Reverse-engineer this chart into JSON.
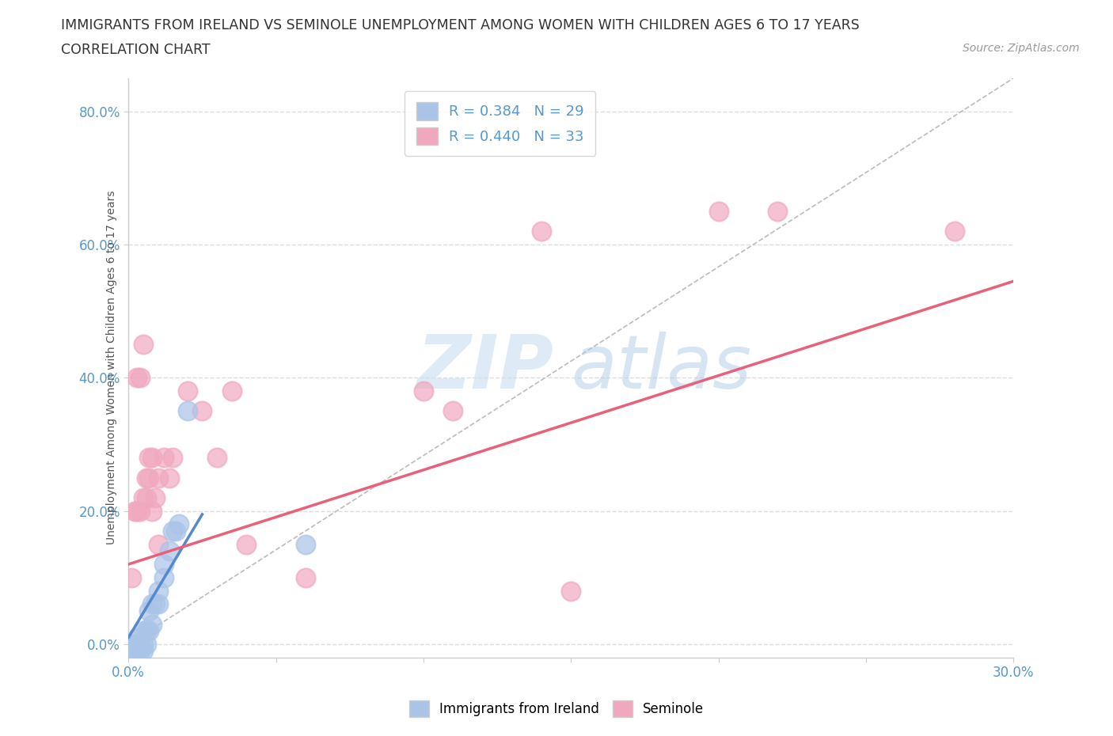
{
  "title_line1": "IMMIGRANTS FROM IRELAND VS SEMINOLE UNEMPLOYMENT AMONG WOMEN WITH CHILDREN AGES 6 TO 17 YEARS",
  "title_line2": "CORRELATION CHART",
  "source_text": "Source: ZipAtlas.com",
  "ylabel": "Unemployment Among Women with Children Ages 6 to 17 years",
  "xlim": [
    0.0,
    0.3
  ],
  "ylim": [
    -0.02,
    0.85
  ],
  "yticks": [
    0.0,
    0.2,
    0.4,
    0.6,
    0.8
  ],
  "xtick_positions": [
    0.0,
    0.05,
    0.1,
    0.15,
    0.2,
    0.25,
    0.3
  ],
  "xtick_labels_show": [
    "0.0%",
    "",
    "",
    "",
    "",
    "",
    "30.0%"
  ],
  "watermark_text": "ZIPatlas",
  "legend_entries": [
    {
      "label": "R = 0.384   N = 29",
      "color": "#aac4e8"
    },
    {
      "label": "R = 0.440   N = 33",
      "color": "#f0a8bf"
    }
  ],
  "ireland_scatter": [
    [
      0.001,
      -0.01
    ],
    [
      0.001,
      0.0
    ],
    [
      0.002,
      0.0
    ],
    [
      0.002,
      -0.01
    ],
    [
      0.003,
      -0.01
    ],
    [
      0.003,
      0.0
    ],
    [
      0.003,
      0.01
    ],
    [
      0.004,
      -0.01
    ],
    [
      0.004,
      0.0
    ],
    [
      0.005,
      -0.01
    ],
    [
      0.005,
      0.0
    ],
    [
      0.005,
      0.02
    ],
    [
      0.006,
      0.0
    ],
    [
      0.006,
      0.02
    ],
    [
      0.007,
      0.02
    ],
    [
      0.007,
      0.05
    ],
    [
      0.008,
      0.03
    ],
    [
      0.008,
      0.06
    ],
    [
      0.009,
      0.06
    ],
    [
      0.01,
      0.06
    ],
    [
      0.01,
      0.08
    ],
    [
      0.012,
      0.1
    ],
    [
      0.012,
      0.12
    ],
    [
      0.014,
      0.14
    ],
    [
      0.015,
      0.17
    ],
    [
      0.016,
      0.17
    ],
    [
      0.017,
      0.18
    ],
    [
      0.02,
      0.35
    ],
    [
      0.06,
      0.15
    ]
  ],
  "seminole_scatter": [
    [
      0.001,
      0.1
    ],
    [
      0.002,
      0.2
    ],
    [
      0.003,
      0.2
    ],
    [
      0.003,
      0.4
    ],
    [
      0.004,
      0.2
    ],
    [
      0.004,
      0.4
    ],
    [
      0.005,
      0.45
    ],
    [
      0.005,
      0.22
    ],
    [
      0.006,
      0.22
    ],
    [
      0.006,
      0.25
    ],
    [
      0.007,
      0.25
    ],
    [
      0.007,
      0.28
    ],
    [
      0.008,
      0.28
    ],
    [
      0.008,
      0.2
    ],
    [
      0.009,
      0.22
    ],
    [
      0.01,
      0.15
    ],
    [
      0.01,
      0.25
    ],
    [
      0.012,
      0.28
    ],
    [
      0.014,
      0.25
    ],
    [
      0.015,
      0.28
    ],
    [
      0.02,
      0.38
    ],
    [
      0.025,
      0.35
    ],
    [
      0.03,
      0.28
    ],
    [
      0.035,
      0.38
    ],
    [
      0.04,
      0.15
    ],
    [
      0.06,
      0.1
    ],
    [
      0.1,
      0.38
    ],
    [
      0.11,
      0.35
    ],
    [
      0.14,
      0.62
    ],
    [
      0.15,
      0.08
    ],
    [
      0.2,
      0.65
    ],
    [
      0.22,
      0.65
    ],
    [
      0.28,
      0.62
    ]
  ],
  "ireland_line": {
    "x0": 0.0,
    "y0": 0.01,
    "x1": 0.025,
    "y1": 0.195,
    "color": "#5588cc"
  },
  "seminole_line": {
    "x0": 0.0,
    "y0": 0.12,
    "x1": 0.3,
    "y1": 0.545,
    "color": "#e8607a"
  },
  "ref_line": {
    "x0": 0.0,
    "y0": 0.0,
    "x1": 0.3,
    "y1": 0.85,
    "color": "#bbbbbb"
  },
  "ireland_color": "#aac4e8",
  "seminole_color": "#f0a8bf",
  "grid_color": "#dddddd",
  "background_color": "#ffffff",
  "title_fontsize": 12.5,
  "label_fontsize": 10,
  "tick_fontsize": 12,
  "tick_color": "#5599cc"
}
